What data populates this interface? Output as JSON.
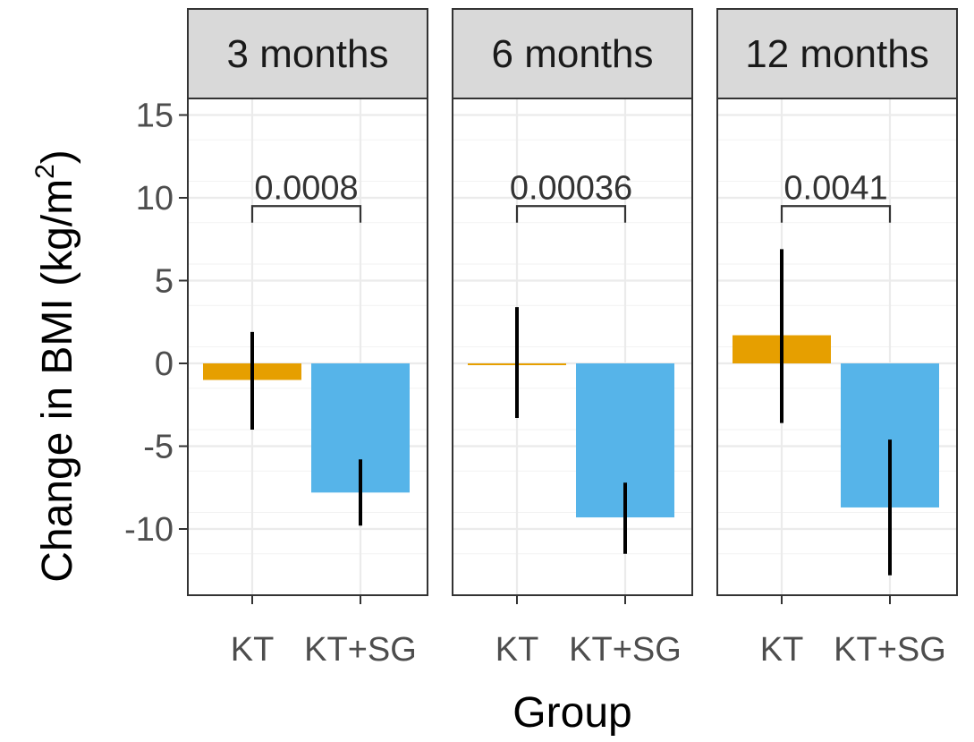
{
  "chart_data": {
    "type": "bar",
    "ylabel": "Change in BMI (kg/m",
    "ylabel_superscript": "2",
    "ylabel_close": ")",
    "xlabel": "Group",
    "ylim": [
      -14,
      16
    ],
    "yticks": [
      -10,
      -5,
      0,
      5,
      10,
      15
    ],
    "ytick_labels": [
      "-10",
      "-5",
      "0",
      "5",
      "10",
      "15"
    ],
    "categories": [
      "KT",
      "KT+SG"
    ],
    "colors": {
      "KT": "#e69f00",
      "KT+SG": "#56b4e9"
    },
    "grid": true,
    "legend": "none",
    "panels": [
      {
        "strip": "3 months",
        "bars": [
          {
            "group": "KT",
            "value": -1.0,
            "err_low": -4.0,
            "err_high": 1.9
          },
          {
            "group": "KT+SG",
            "value": -7.8,
            "err_low": -9.8,
            "err_high": -5.8
          }
        ],
        "pvalue": "0.0008"
      },
      {
        "strip": "6 months",
        "bars": [
          {
            "group": "KT",
            "value": 0.0,
            "err_low": -3.3,
            "err_high": 3.4
          },
          {
            "group": "KT+SG",
            "value": -9.3,
            "err_low": -11.5,
            "err_high": -7.2
          }
        ],
        "pvalue": "0.00036"
      },
      {
        "strip": "12 months",
        "bars": [
          {
            "group": "KT",
            "value": 1.7,
            "err_low": -3.6,
            "err_high": 6.9
          },
          {
            "group": "KT+SG",
            "value": -8.7,
            "err_low": -12.8,
            "err_high": -4.6
          }
        ],
        "pvalue": "0.0041"
      }
    ],
    "bracket_y": 9.5,
    "bracket_drop": 1.0
  }
}
